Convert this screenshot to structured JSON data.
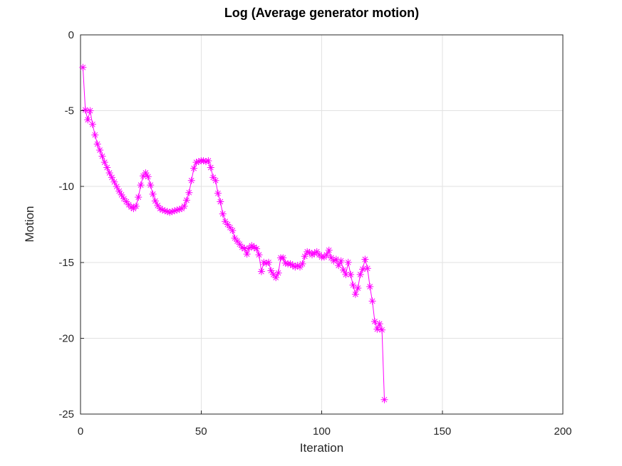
{
  "figure": {
    "background": "#ffffff",
    "axis_color": "#262626",
    "grid_color": "#e2e2e2",
    "title_color": "#000000"
  },
  "chart_data": {
    "type": "line",
    "title": "Log (Average generator motion)",
    "xlabel": "Iteration",
    "ylabel": "Motion",
    "xlim": [
      0,
      200
    ],
    "ylim": [
      -25,
      0
    ],
    "xticks": [
      0,
      50,
      100,
      150,
      200
    ],
    "yticks": [
      0,
      -5,
      -10,
      -15,
      -20,
      -25
    ],
    "grid": true,
    "legend_position": "none",
    "series": [
      {
        "name": "log-average-generator-motion",
        "color": "#FF00FF",
        "marker": "asterisk",
        "line_style": "solid",
        "x_start": 1,
        "x_step": 1,
        "values": [
          -2.15,
          -4.95,
          -5.6,
          -5.0,
          -5.9,
          -6.6,
          -7.2,
          -7.6,
          -8.0,
          -8.4,
          -8.75,
          -9.1,
          -9.4,
          -9.7,
          -10.0,
          -10.3,
          -10.55,
          -10.8,
          -11.0,
          -11.2,
          -11.35,
          -11.45,
          -11.3,
          -10.7,
          -9.9,
          -9.3,
          -9.1,
          -9.35,
          -9.9,
          -10.5,
          -10.95,
          -11.25,
          -11.45,
          -11.55,
          -11.6,
          -11.65,
          -11.7,
          -11.65,
          -11.6,
          -11.55,
          -11.5,
          -11.45,
          -11.3,
          -10.9,
          -10.4,
          -9.6,
          -8.8,
          -8.4,
          -8.35,
          -8.3,
          -8.3,
          -8.35,
          -8.3,
          -8.75,
          -9.4,
          -9.6,
          -10.45,
          -11.0,
          -11.8,
          -12.3,
          -12.5,
          -12.7,
          -12.9,
          -13.4,
          -13.6,
          -13.8,
          -14.0,
          -14.1,
          -14.45,
          -14.05,
          -13.9,
          -14.0,
          -14.1,
          -14.5,
          -15.6,
          -15.0,
          -15.05,
          -15.0,
          -15.55,
          -15.8,
          -16.0,
          -15.7,
          -14.7,
          -14.7,
          -15.05,
          -15.1,
          -15.1,
          -15.2,
          -15.3,
          -15.2,
          -15.3,
          -15.1,
          -14.6,
          -14.3,
          -14.35,
          -14.5,
          -14.4,
          -14.3,
          -14.5,
          -14.65,
          -14.65,
          -14.5,
          -14.2,
          -14.7,
          -14.9,
          -14.8,
          -15.2,
          -14.9,
          -15.5,
          -15.8,
          -15.0,
          -15.8,
          -16.5,
          -17.1,
          -16.7,
          -15.8,
          -15.45,
          -14.8,
          -15.4,
          -16.6,
          -17.55,
          -18.9,
          -19.4,
          -19.05,
          -19.45,
          -24.05
        ]
      }
    ]
  }
}
